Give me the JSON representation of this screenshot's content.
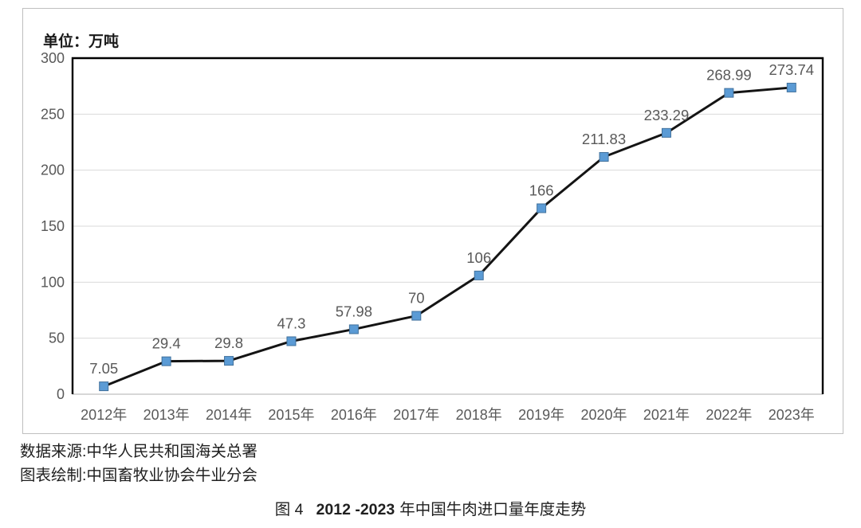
{
  "chart_data": {
    "type": "line",
    "title": "",
    "unit_label": "单位：万吨",
    "categories": [
      "2012年",
      "2013年",
      "2014年",
      "2015年",
      "2016年",
      "2017年",
      "2018年",
      "2019年",
      "2020年",
      "2021年",
      "2022年",
      "2023年"
    ],
    "values": [
      7.05,
      29.4,
      29.8,
      47.3,
      57.98,
      70,
      106,
      166,
      211.83,
      233.29,
      268.99,
      273.74
    ],
    "data_labels": [
      "7.05",
      "29.4",
      "29.8",
      "47.3",
      "57.98",
      "70",
      "106",
      "166",
      "211.83",
      "233.29",
      "268.99",
      "273.74"
    ],
    "xlabel": "",
    "ylabel": "",
    "ylim": [
      0,
      300
    ],
    "yticks": [
      0,
      50,
      100,
      150,
      200,
      250,
      300
    ],
    "grid": true,
    "legend_position": "none",
    "marker_shape": "square",
    "colors": {
      "line": "#141414",
      "marker_fill": "#5B9BD5",
      "marker_border": "#41719C",
      "gridline": "#d9d9d9",
      "axis_bottom": "#bfbfbf",
      "plot_border": "#000000",
      "tick_text": "#595959",
      "data_label_text": "#595959"
    }
  },
  "footer": {
    "source_line1": "数据来源:中华人民共和国海关总署",
    "source_line2": "图表绘制:中国畜牧业协会牛业分会",
    "caption_prefix": "图 4",
    "caption_years": "2012 -2023",
    "caption_rest": "年中国牛肉进口量年度走势"
  }
}
